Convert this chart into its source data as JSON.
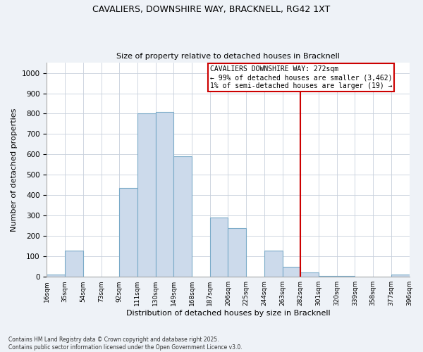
{
  "title_line1": "CAVALIERS, DOWNSHIRE WAY, BRACKNELL, RG42 1XT",
  "title_line2": "Size of property relative to detached houses in Bracknell",
  "xlabel": "Distribution of detached houses by size in Bracknell",
  "ylabel": "Number of detached properties",
  "bar_values": [
    10,
    130,
    0,
    0,
    435,
    800,
    810,
    590,
    0,
    290,
    240,
    0,
    130,
    50,
    20,
    5,
    5,
    0,
    0,
    10
  ],
  "bin_labels": [
    "16sqm",
    "35sqm",
    "54sqm",
    "73sqm",
    "92sqm",
    "111sqm",
    "130sqm",
    "149sqm",
    "168sqm",
    "187sqm",
    "206sqm",
    "225sqm",
    "244sqm",
    "263sqm",
    "282sqm",
    "301sqm",
    "320sqm",
    "339sqm",
    "358sqm",
    "377sqm",
    "396sqm"
  ],
  "bar_color": "#ccdaeb",
  "bar_edge_color": "#7aaac8",
  "vline_x_label": "263sqm",
  "vline_color": "#cc0000",
  "annotation_title": "CAVALIERS DOWNSHIRE WAY: 272sqm",
  "annotation_line1": "← 99% of detached houses are smaller (3,462)",
  "annotation_line2": "1% of semi-detached houses are larger (19) →",
  "annotation_box_color": "#cc0000",
  "ylim": [
    0,
    1050
  ],
  "yticks": [
    0,
    100,
    200,
    300,
    400,
    500,
    600,
    700,
    800,
    900,
    1000
  ],
  "footer_line1": "Contains HM Land Registry data © Crown copyright and database right 2025.",
  "footer_line2": "Contains public sector information licensed under the Open Government Licence v3.0.",
  "bg_color": "#eef2f7",
  "plot_bg_color": "#ffffff",
  "grid_color": "#c8d0dc"
}
